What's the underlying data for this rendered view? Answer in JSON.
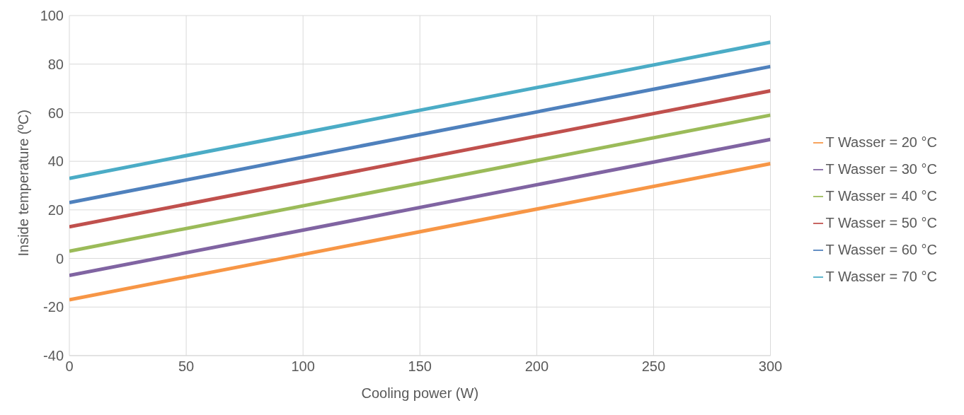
{
  "chart_data": {
    "type": "line",
    "xlabel": "Cooling power (W)",
    "ylabel": "Inside temperature (ºC)",
    "x": [
      0,
      300
    ],
    "series": [
      {
        "name": "T Wasser = 70 °C",
        "color": "#4bacc6",
        "values": [
          33,
          89
        ]
      },
      {
        "name": "T Wasser = 60 °C",
        "color": "#4f81bd",
        "values": [
          23,
          79
        ]
      },
      {
        "name": "T Wasser = 50 °C",
        "color": "#c0504d",
        "values": [
          13,
          69
        ]
      },
      {
        "name": "T Wasser = 40 °C",
        "color": "#9bbb59",
        "values": [
          3,
          59
        ]
      },
      {
        "name": "T Wasser = 30 °C",
        "color": "#8064a2",
        "values": [
          -7,
          49
        ]
      },
      {
        "name": "T Wasser = 20 °C",
        "color": "#f79646",
        "values": [
          -17,
          39
        ]
      }
    ],
    "xlim": [
      0,
      300
    ],
    "xticks": [
      0,
      50,
      100,
      150,
      200,
      250,
      300
    ],
    "ylim": [
      -40,
      100
    ],
    "yticks": [
      -40,
      -20,
      0,
      20,
      40,
      60,
      80,
      100
    ],
    "grid": true,
    "legend": "right",
    "marker": "none",
    "line_style": "solid"
  }
}
